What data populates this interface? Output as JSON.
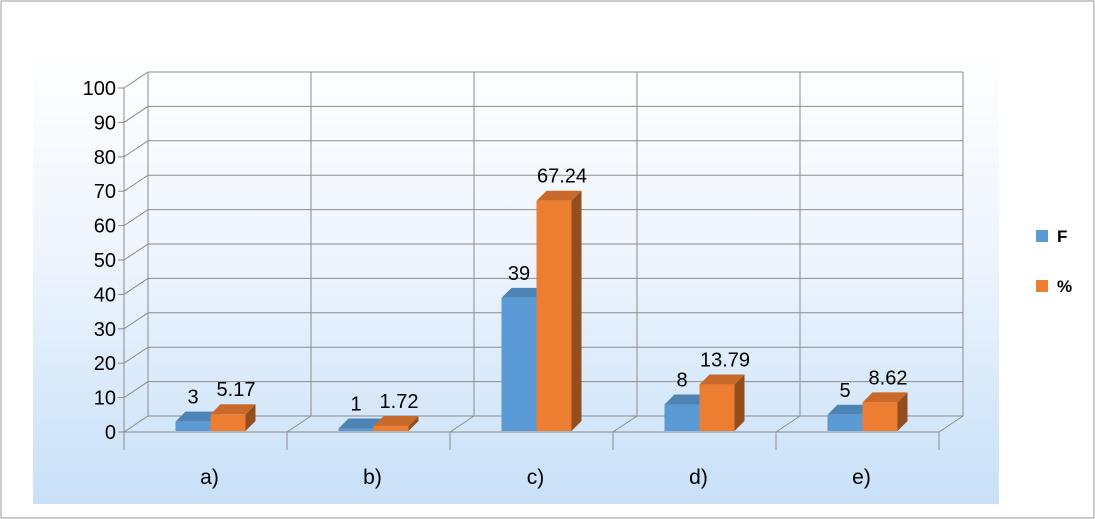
{
  "chart_data": {
    "type": "bar",
    "categories": [
      "a)",
      "b)",
      "c)",
      "d)",
      "e)"
    ],
    "series": [
      {
        "name": "F",
        "values": [
          3,
          1,
          39,
          8,
          5
        ],
        "labels": [
          "3",
          "1",
          "39",
          "8",
          "5"
        ]
      },
      {
        "name": "%",
        "values": [
          5.17,
          1.72,
          67.24,
          13.79,
          8.62
        ],
        "labels": [
          "5.17",
          "1.72",
          "67.24",
          "13.79",
          "8.62"
        ]
      }
    ],
    "ylim": [
      0,
      100
    ],
    "yticks": [
      "0",
      "10",
      "20",
      "30",
      "40",
      "50",
      "60",
      "70",
      "80",
      "90",
      "100"
    ],
    "grid": true,
    "legend_position": "right",
    "colors": {
      "F": "#5b9bd5",
      "%": "#ed7d31"
    }
  }
}
